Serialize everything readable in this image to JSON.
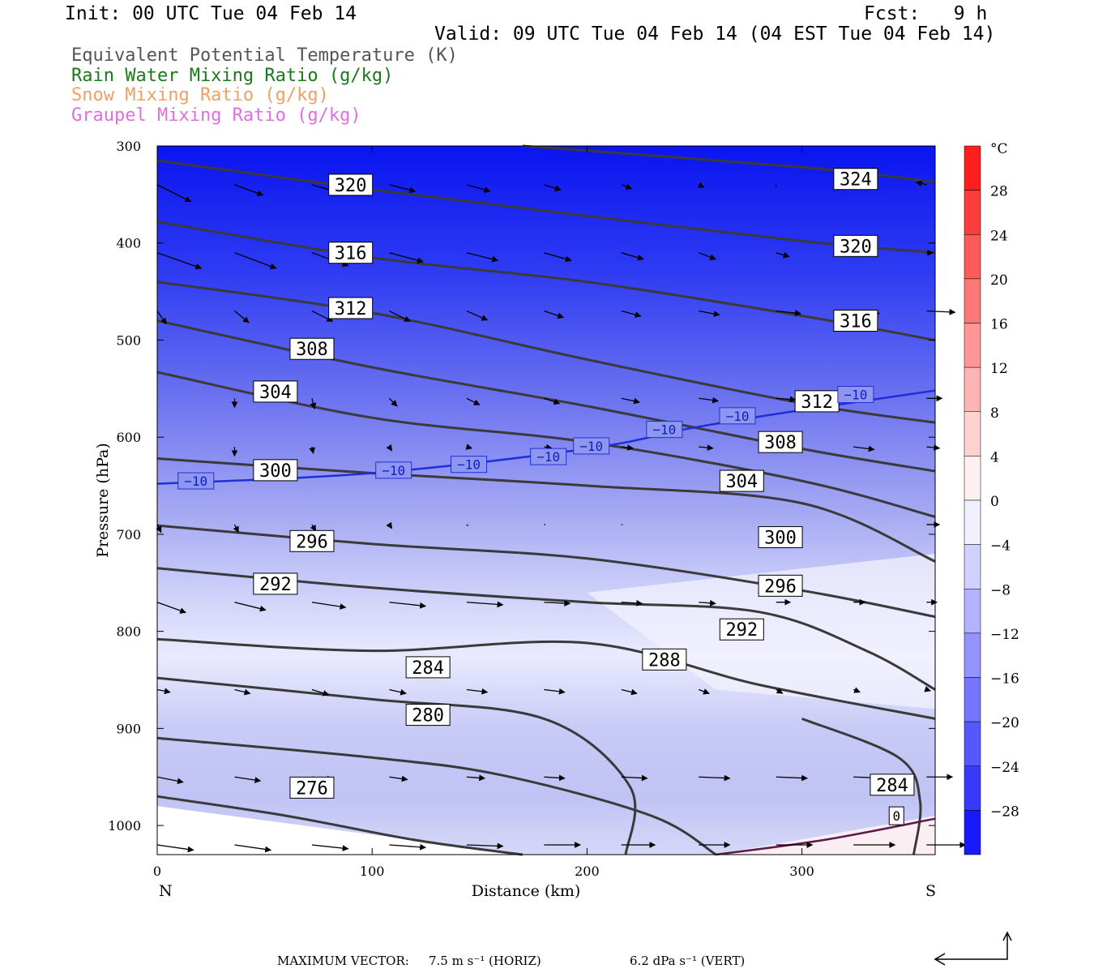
{
  "header": {
    "init": "Init: 00 UTC Tue 04 Feb 14",
    "fcst": "Fcst:   9 h",
    "valid": "Valid: 09 UTC Tue 04 Feb 14 (04 EST Tue 04 Feb 14)"
  },
  "legend": [
    {
      "label": "Equivalent Potential Temperature (K)",
      "color": "#555555"
    },
    {
      "label": "Rain Water Mixing Ratio (g/kg)",
      "color": "#1a7a1a"
    },
    {
      "label": "Snow Mixing Ratio (g/kg)",
      "color": "#f0a060"
    },
    {
      "label": "Graupel Mixing Ratio (g/kg)",
      "color": "#e070e0"
    }
  ],
  "footer": {
    "max_vector_label": "MAXIMUM VECTOR:",
    "horiz": "7.5 m s⁻¹ (HORIZ)",
    "vert": "6.2 dPa s⁻¹ (VERT)"
  },
  "chart_data": {
    "type": "contour",
    "xlabel": "Distance (km)",
    "ylabel": "Pressure (hPa)",
    "xlim": [
      0,
      362
    ],
    "ylim": [
      300,
      1030
    ],
    "y_reversed": true,
    "xticks": [
      0,
      100,
      200,
      300
    ],
    "yticks": [
      300,
      400,
      500,
      600,
      700,
      800,
      900,
      1000
    ],
    "x_endpoint_left": "N",
    "x_endpoint_right": "S",
    "colorbar": {
      "unit": "°C",
      "ticks": [
        28,
        24,
        20,
        16,
        12,
        8,
        4,
        0,
        -4,
        -8,
        -12,
        -16,
        -20,
        -24,
        -28
      ],
      "range": [
        -32,
        32
      ],
      "step": 4
    },
    "theta_e_contours": [
      {
        "value": 324,
        "points": [
          [
            170,
            300
          ],
          [
            300,
            322
          ],
          [
            362,
            337
          ]
        ],
        "labels": [
          [
            325,
            334
          ]
        ]
      },
      {
        "value": 320,
        "points": [
          [
            0,
            315
          ],
          [
            100,
            345
          ],
          [
            200,
            372
          ],
          [
            300,
            398
          ],
          [
            362,
            410
          ]
        ],
        "labels": [
          [
            90,
            340
          ],
          [
            325,
            403
          ]
        ]
      },
      {
        "value": 316,
        "points": [
          [
            0,
            378
          ],
          [
            100,
            415
          ],
          [
            200,
            440
          ],
          [
            300,
            475
          ],
          [
            362,
            500
          ]
        ],
        "labels": [
          [
            90,
            410
          ],
          [
            325,
            480
          ]
        ]
      },
      {
        "value": 312,
        "points": [
          [
            0,
            440
          ],
          [
            100,
            472
          ],
          [
            200,
            520
          ],
          [
            300,
            565
          ],
          [
            362,
            585
          ]
        ],
        "labels": [
          [
            90,
            467
          ],
          [
            307,
            563
          ]
        ]
      },
      {
        "value": 308,
        "points": [
          [
            0,
            480
          ],
          [
            100,
            528
          ],
          [
            200,
            568
          ],
          [
            300,
            612
          ],
          [
            362,
            635
          ]
        ],
        "labels": [
          [
            72,
            509
          ],
          [
            290,
            605
          ]
        ]
      },
      {
        "value": 304,
        "points": [
          [
            0,
            533
          ],
          [
            100,
            580
          ],
          [
            200,
            605
          ],
          [
            300,
            645
          ],
          [
            362,
            682
          ]
        ],
        "labels": [
          [
            55,
            553
          ],
          [
            272,
            645
          ]
        ]
      },
      {
        "value": 300,
        "points": [
          [
            0,
            622
          ],
          [
            100,
            637
          ],
          [
            200,
            650
          ],
          [
            300,
            668
          ],
          [
            362,
            728
          ]
        ],
        "labels": [
          [
            55,
            634
          ],
          [
            290,
            703
          ]
        ]
      },
      {
        "value": 296,
        "points": [
          [
            0,
            691
          ],
          [
            100,
            710
          ],
          [
            200,
            725
          ],
          [
            300,
            758
          ],
          [
            362,
            785
          ]
        ],
        "labels": [
          [
            72,
            707
          ],
          [
            290,
            753
          ]
        ]
      },
      {
        "value": 292,
        "points": [
          [
            0,
            735
          ],
          [
            100,
            755
          ],
          [
            200,
            770
          ],
          [
            280,
            780
          ],
          [
            330,
            820
          ],
          [
            362,
            860
          ]
        ],
        "labels": [
          [
            55,
            751
          ],
          [
            272,
            798
          ]
        ]
      },
      {
        "value": 288,
        "points": [
          [
            0,
            808
          ],
          [
            100,
            820
          ],
          [
            200,
            812
          ],
          [
            280,
            855
          ],
          [
            362,
            890
          ]
        ],
        "labels": [
          [
            236,
            829
          ]
        ]
      },
      {
        "value": 284,
        "points": [
          [
            0,
            848
          ],
          [
            100,
            870
          ],
          [
            180,
            890
          ],
          [
            220,
            960
          ],
          [
            218,
            1030
          ]
        ],
        "labels": [
          [
            126,
            837
          ]
        ]
      },
      {
        "value": 280,
        "points": [
          [
            0,
            910
          ],
          [
            100,
            930
          ],
          [
            160,
            948
          ],
          [
            230,
            990
          ],
          [
            260,
            1030
          ]
        ],
        "labels": [
          [
            126,
            886
          ]
        ]
      },
      {
        "value": 276,
        "points": [
          [
            0,
            970
          ],
          [
            60,
            990
          ],
          [
            120,
            1015
          ],
          [
            170,
            1030
          ]
        ],
        "labels": [
          [
            72,
            961
          ]
        ]
      },
      {
        "value": 284,
        "points": [
          [
            300,
            890
          ],
          [
            345,
            930
          ],
          [
            355,
            975
          ],
          [
            352,
            1030
          ]
        ],
        "labels": [
          [
            342,
            958
          ]
        ]
      }
    ],
    "isotherm_minus10": {
      "value": -10,
      "points": [
        [
          0,
          648
        ],
        [
          100,
          637
        ],
        [
          200,
          612
        ],
        [
          250,
          590
        ],
        [
          300,
          572
        ],
        [
          362,
          552
        ]
      ],
      "labels": [
        [
          18,
          645
        ],
        [
          110,
          634
        ],
        [
          145,
          628
        ],
        [
          182,
          620
        ],
        [
          202,
          609
        ],
        [
          236,
          592
        ],
        [
          270,
          578
        ],
        [
          325,
          556
        ]
      ]
    },
    "isotherm_zero": {
      "value": 0,
      "points": [
        [
          260,
          1030
        ],
        [
          310,
          1015
        ],
        [
          362,
          993
        ]
      ],
      "labels": [
        [
          344,
          990
        ]
      ]
    },
    "wind_vectors": [
      {
        "p": 340,
        "x": [
          0,
          36,
          72,
          108,
          144,
          180,
          216,
          252,
          288,
          324,
          358
        ],
        "dx": [
          26,
          22,
          21,
          20,
          18,
          13,
          8,
          4,
          0,
          4,
          -8
        ],
        "dy": [
          13,
          8,
          6,
          5,
          5,
          4,
          3,
          2,
          2,
          2,
          -2
        ]
      },
      {
        "p": 410,
        "x": [
          0,
          36,
          72,
          108,
          144,
          180,
          216,
          252,
          288,
          324,
          358
        ],
        "dx": [
          34,
          32,
          28,
          26,
          24,
          21,
          17,
          13,
          10,
          9,
          5
        ],
        "dy": [
          12,
          12,
          10,
          7,
          6,
          6,
          5,
          5,
          3,
          2,
          0
        ]
      },
      {
        "p": 470,
        "x": [
          0,
          36,
          72,
          108,
          144,
          180,
          216,
          252,
          288,
          324,
          358
        ],
        "dx": [
          7,
          11,
          16,
          16,
          16,
          15,
          15,
          16,
          19,
          20,
          22
        ],
        "dy": [
          10,
          9,
          8,
          8,
          7,
          5,
          4,
          3,
          2,
          2,
          1
        ]
      },
      {
        "p": 560,
        "x": [
          0,
          36,
          72,
          108,
          144,
          180,
          216,
          252,
          288,
          324,
          358
        ],
        "dx": [
          0,
          0,
          2,
          6,
          10,
          12,
          14,
          15,
          15,
          14,
          12
        ],
        "dy": [
          0,
          7,
          8,
          6,
          5,
          4,
          3,
          2,
          1,
          1,
          0
        ]
      },
      {
        "p": 610,
        "x": [
          0,
          36,
          72,
          108,
          144,
          180,
          216,
          252,
          288,
          324,
          358
        ],
        "dx": [
          0,
          0,
          1,
          2,
          4,
          6,
          9,
          11,
          15,
          16,
          10
        ],
        "dy": [
          0,
          7,
          5,
          3,
          1,
          1,
          1,
          1,
          1,
          2,
          1
        ]
      },
      {
        "p": 690,
        "x": [
          0,
          36,
          72,
          108,
          144,
          180,
          216,
          252,
          288,
          324,
          358
        ],
        "dx": [
          3,
          3,
          3,
          2,
          1,
          1,
          1,
          0,
          0,
          0,
          10
        ],
        "dy": [
          6,
          6,
          5,
          3,
          1,
          0,
          0,
          0,
          0,
          0,
          0
        ]
      },
      {
        "p": 770,
        "x": [
          0,
          36,
          72,
          108,
          144,
          180,
          216,
          252,
          288,
          324,
          358
        ],
        "dx": [
          22,
          24,
          26,
          28,
          28,
          20,
          16,
          13,
          11,
          9,
          8
        ],
        "dy": [
          8,
          6,
          4,
          3,
          2,
          1,
          1,
          1,
          0,
          0,
          0
        ]
      },
      {
        "p": 860,
        "x": [
          0,
          36,
          72,
          108,
          144,
          180,
          216,
          252,
          288,
          324,
          358
        ],
        "dx": [
          10,
          12,
          13,
          13,
          16,
          16,
          12,
          8,
          5,
          5,
          3
        ],
        "dy": [
          2,
          3,
          4,
          3,
          2,
          2,
          3,
          3,
          3,
          2,
          1
        ]
      },
      {
        "p": 950,
        "x": [
          0,
          36,
          72,
          108,
          144,
          180,
          216,
          252,
          288,
          324,
          358
        ],
        "dx": [
          20,
          20,
          16,
          14,
          14,
          16,
          20,
          24,
          24,
          28,
          20
        ],
        "dy": [
          4,
          3,
          2,
          2,
          1,
          1,
          1,
          1,
          1,
          1,
          0
        ]
      },
      {
        "p": 1020,
        "x": [
          0,
          36,
          72,
          108,
          144,
          180,
          216,
          252,
          288,
          324,
          358
        ],
        "dx": [
          28,
          28,
          28,
          28,
          28,
          28,
          26,
          24,
          28,
          32,
          30
        ],
        "dy": [
          4,
          4,
          3,
          2,
          1,
          0,
          0,
          0,
          0,
          0,
          0
        ]
      }
    ]
  }
}
